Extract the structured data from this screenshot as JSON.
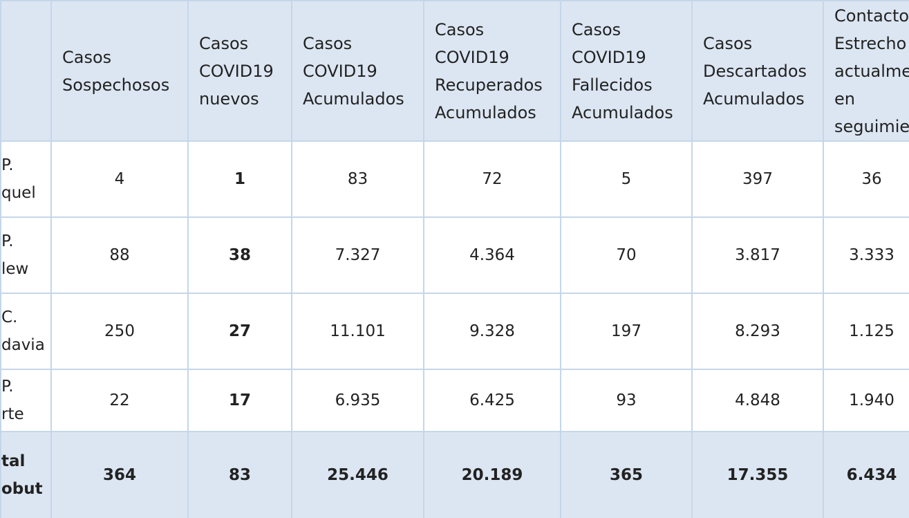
{
  "table": {
    "header": [
      "",
      "Casos\nSospechosos",
      "Casos\nCOVID19\nnuevos",
      "Casos\nCOVID19\nAcumulados",
      "Casos\nCOVID19\nRecuperados\nAcumulados",
      "Casos\nCOVID19\nFallecidos\nAcumulados",
      "Casos\nDescartados\nAcumulados",
      "Contacto\nEstrecho\nactualme\nen\nseguimie"
    ],
    "rows": [
      [
        "P.\nquel",
        "4",
        "1",
        "83",
        "72",
        "5",
        "397",
        "36"
      ],
      [
        "P.\nlew",
        "88",
        "38",
        "7.327",
        "4.364",
        "70",
        "3.817",
        "3.333"
      ],
      [
        "C.\ndavia",
        "250",
        "27",
        "11.101",
        "9.328",
        "197",
        "8.293",
        "1.125"
      ],
      [
        "P.\nrte",
        "22",
        "17",
        "6.935",
        "6.425",
        "93",
        "4.848",
        "1.940"
      ],
      [
        "tal\nobut",
        "364",
        "83",
        "25.446",
        "20.189",
        "365",
        "17.355",
        "6.434"
      ]
    ]
  }
}
